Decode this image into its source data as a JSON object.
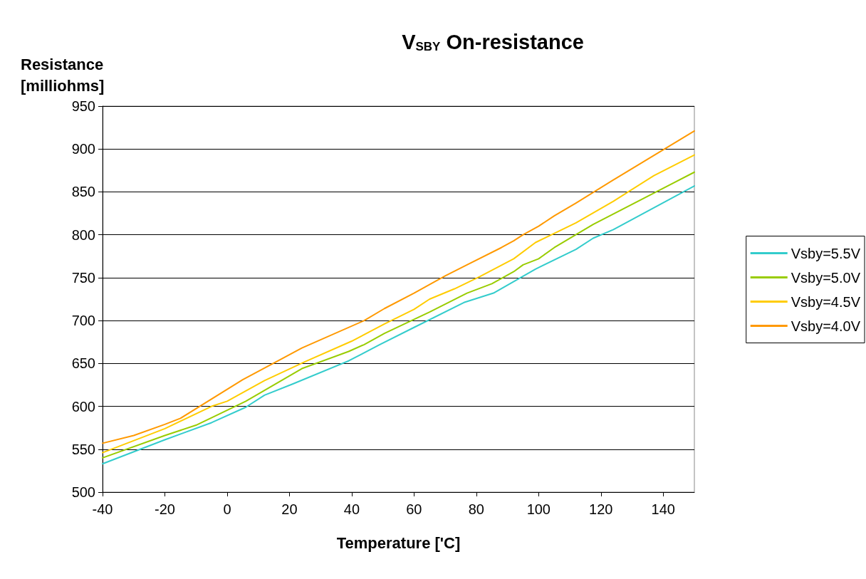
{
  "chart_data": {
    "type": "line",
    "title": "V$_{SBY}$ On-resistance",
    "xlabel": "Temperature ['C]",
    "ylabel": "Resistance\n[milliohms]",
    "xlim": [
      -40,
      150
    ],
    "xticks": [
      -40,
      -20,
      0,
      20,
      40,
      60,
      80,
      100,
      120,
      140
    ],
    "ylim": [
      500,
      950
    ],
    "yticks": [
      500,
      550,
      600,
      650,
      700,
      750,
      800,
      850,
      900,
      950
    ],
    "grid": "y",
    "legend": "right",
    "marker": "none",
    "line_style": "solid",
    "series": [
      {
        "name": "Vsby=5.5V",
        "color": "#33cccc",
        "x": [
          -40,
          -20,
          -5,
          6,
          12,
          21,
          39,
          49,
          60,
          76,
          85.5,
          99,
          112,
          117.5,
          124,
          150
        ],
        "values": [
          533,
          561,
          581,
          599,
          613,
          626,
          653,
          672,
          692,
          721,
          732,
          760,
          783,
          796,
          806,
          857
        ]
      },
      {
        "name": "Vsby=5.0V",
        "color": "#99cc00",
        "x": [
          -40,
          -20,
          -10,
          6,
          24,
          39,
          44,
          50.5,
          65,
          77,
          85,
          92,
          95,
          100,
          105,
          117.5,
          150
        ],
        "values": [
          540,
          566,
          578,
          606,
          644,
          664,
          672,
          685,
          710,
          732,
          743,
          757,
          765,
          772,
          785,
          812,
          873
        ]
      },
      {
        "name": "Vsby=4.5V",
        "color": "#ffcc00",
        "x": [
          -40,
          -20,
          -5,
          0,
          12,
          25,
          40,
          50.5,
          60,
          65,
          73,
          81,
          92,
          99,
          112,
          124,
          137,
          150
        ],
        "values": [
          546,
          574,
          600,
          606,
          630,
          652,
          676,
          696,
          713,
          725,
          737,
          751,
          772,
          791,
          814,
          839,
          869,
          893
        ]
      },
      {
        "name": "Vsby=4.0V",
        "color": "#ff9900",
        "x": [
          -40,
          -30,
          -20,
          -15,
          5,
          24,
          44,
          50.5,
          60,
          70,
          77,
          88,
          92,
          95,
          100,
          105,
          112,
          124,
          150
        ],
        "values": [
          557,
          566,
          579,
          586,
          631,
          668,
          700,
          714,
          732,
          752,
          765,
          785,
          793,
          800,
          810,
          822,
          837,
          864,
          921
        ]
      }
    ]
  }
}
